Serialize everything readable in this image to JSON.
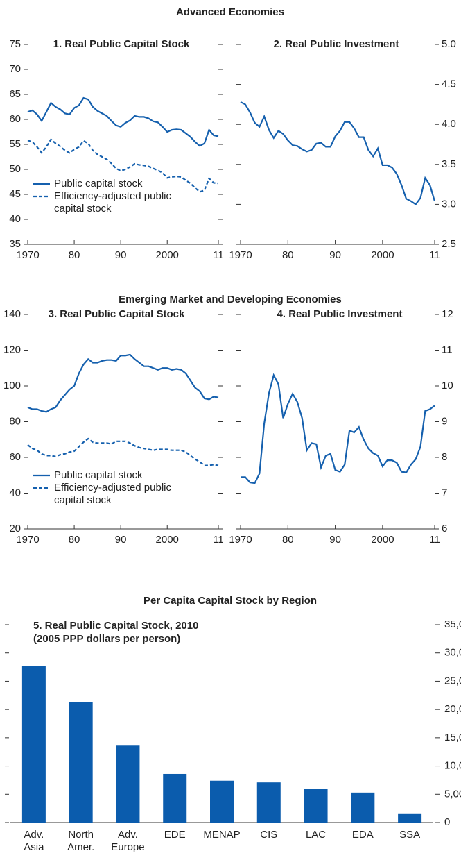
{
  "headings": [
    "Advanced Economies",
    "Emerging Market and Developing Economies",
    "Per Capita Capital Stock by Region"
  ],
  "chart_data": [
    {
      "type": "line",
      "title": "1. Real Public Capital Stock",
      "axis_side": "left",
      "x": [
        1970,
        1971,
        1972,
        1973,
        1974,
        1975,
        1976,
        1977,
        1978,
        1979,
        1980,
        1981,
        1982,
        1983,
        1984,
        1985,
        1986,
        1987,
        1988,
        1989,
        1990,
        1991,
        1992,
        1993,
        1994,
        1995,
        1996,
        1997,
        1998,
        1999,
        2000,
        2001,
        2002,
        2003,
        2004,
        2005,
        2006,
        2007,
        2008,
        2009,
        2010,
        2011
      ],
      "xlim": [
        1970,
        2011
      ],
      "xticks": [
        1970,
        {
          "value": 1980,
          "label": "80"
        },
        {
          "value": 1990,
          "label": "90"
        },
        2000,
        {
          "value": 2011,
          "label": "11"
        }
      ],
      "ylim": [
        35,
        75
      ],
      "yticks": [
        35,
        40,
        45,
        50,
        55,
        60,
        65,
        70,
        75
      ],
      "series": [
        {
          "name": "Public capital stock",
          "color": "#1560ae",
          "style": "solid",
          "values": [
            61.5,
            61.8,
            61,
            59.7,
            61.5,
            63.3,
            62.5,
            62,
            61.2,
            61,
            62.3,
            62.8,
            64.3,
            64,
            62.5,
            61.7,
            61.2,
            60.7,
            59.7,
            58.8,
            58.5,
            59.3,
            59.8,
            60.7,
            60.5,
            60.5,
            60.2,
            59.6,
            59.4,
            58.5,
            57.5,
            57.9,
            58,
            57.9,
            57.2,
            56.5,
            55.5,
            54.7,
            55.2,
            57.9,
            56.8,
            56.6
          ]
        },
        {
          "name": "Efficiency-adjusted public capital stock",
          "color": "#1560ae",
          "style": "dashed",
          "values": [
            55.8,
            55.5,
            54.5,
            53.3,
            54.5,
            56,
            55.2,
            54.6,
            53.8,
            53.3,
            54,
            54.5,
            55.7,
            55.2,
            53.8,
            53,
            52.5,
            52,
            51.2,
            50.2,
            49.7,
            50,
            50.5,
            51.1,
            50.9,
            50.8,
            50.6,
            50.2,
            49.8,
            49.3,
            48.3,
            48.5,
            48.6,
            48.5,
            47.8,
            47.2,
            46.3,
            45.5,
            45.8,
            48.2,
            47.3,
            47.2
          ]
        }
      ]
    },
    {
      "type": "line",
      "title": "2. Real Public Investment",
      "axis_side": "right",
      "x": [
        1970,
        1971,
        1972,
        1973,
        1974,
        1975,
        1976,
        1977,
        1978,
        1979,
        1980,
        1981,
        1982,
        1983,
        1984,
        1985,
        1986,
        1987,
        1988,
        1989,
        1990,
        1991,
        1992,
        1993,
        1994,
        1995,
        1996,
        1997,
        1998,
        1999,
        2000,
        2001,
        2002,
        2003,
        2004,
        2005,
        2006,
        2007,
        2008,
        2009,
        2010,
        2011
      ],
      "xlim": [
        1970,
        2011
      ],
      "xticks": [
        1970,
        {
          "value": 1980,
          "label": "80"
        },
        {
          "value": 1990,
          "label": "90"
        },
        2000,
        {
          "value": 2011,
          "label": "11"
        }
      ],
      "ylim": [
        2.5,
        5
      ],
      "yticks": [
        2.5,
        {
          "value": 3,
          "label": "3.0"
        },
        3.5,
        {
          "value": 4,
          "label": "4.0"
        },
        4.5,
        {
          "value": 5,
          "label": "5.0"
        }
      ],
      "series": [
        {
          "color": "#1560ae",
          "style": "solid",
          "values": [
            4.28,
            4.25,
            4.15,
            4.02,
            3.97,
            4.1,
            3.93,
            3.83,
            3.92,
            3.88,
            3.8,
            3.74,
            3.73,
            3.69,
            3.66,
            3.68,
            3.76,
            3.77,
            3.72,
            3.72,
            3.85,
            3.92,
            4.03,
            4.03,
            3.95,
            3.84,
            3.84,
            3.68,
            3.6,
            3.7,
            3.49,
            3.49,
            3.46,
            3.38,
            3.24,
            3.07,
            3.04,
            3,
            3.08,
            3.33,
            3.24,
            3.04
          ]
        }
      ]
    },
    {
      "type": "line",
      "title": "3. Real Public Capital Stock",
      "axis_side": "left",
      "x": [
        1970,
        1971,
        1972,
        1973,
        1974,
        1975,
        1976,
        1977,
        1978,
        1979,
        1980,
        1981,
        1982,
        1983,
        1984,
        1985,
        1986,
        1987,
        1988,
        1989,
        1990,
        1991,
        1992,
        1993,
        1994,
        1995,
        1996,
        1997,
        1998,
        1999,
        2000,
        2001,
        2002,
        2003,
        2004,
        2005,
        2006,
        2007,
        2008,
        2009,
        2010,
        2011
      ],
      "xlim": [
        1970,
        2011
      ],
      "xticks": [
        1970,
        {
          "value": 1980,
          "label": "80"
        },
        {
          "value": 1990,
          "label": "90"
        },
        2000,
        {
          "value": 2011,
          "label": "11"
        }
      ],
      "ylim": [
        20,
        140
      ],
      "yticks": [
        20,
        40,
        60,
        80,
        100,
        120,
        140
      ],
      "series": [
        {
          "name": "Public capital stock",
          "color": "#1560ae",
          "style": "solid",
          "values": [
            88,
            87,
            87,
            86,
            85.5,
            87,
            88,
            92,
            95,
            98,
            100,
            107,
            112,
            115,
            113,
            113,
            114,
            114.5,
            114.5,
            114,
            117,
            117,
            117.5,
            115,
            113,
            111,
            111,
            110,
            109,
            110,
            110,
            109,
            109.5,
            109,
            107,
            103,
            99,
            97,
            93,
            92.5,
            94,
            93.5
          ]
        },
        {
          "name": "Efficiency-adjusted public capital stock",
          "color": "#1560ae",
          "style": "dashed",
          "values": [
            67,
            65,
            64,
            62,
            61,
            61,
            60.5,
            61.5,
            62,
            63,
            63.5,
            66,
            68.5,
            70.5,
            68.5,
            68,
            68,
            68,
            67.5,
            69,
            69,
            69,
            68,
            66.5,
            65.5,
            65,
            64.5,
            64,
            64.5,
            64.5,
            64.5,
            64,
            64,
            64,
            63,
            61,
            59,
            57.5,
            55.5,
            55.5,
            56,
            55.5
          ]
        }
      ]
    },
    {
      "type": "line",
      "title": "4. Real Public Investment",
      "axis_side": "right",
      "x": [
        1970,
        1971,
        1972,
        1973,
        1974,
        1975,
        1976,
        1977,
        1978,
        1979,
        1980,
        1981,
        1982,
        1983,
        1984,
        1985,
        1986,
        1987,
        1988,
        1989,
        1990,
        1991,
        1992,
        1993,
        1994,
        1995,
        1996,
        1997,
        1998,
        1999,
        2000,
        2001,
        2002,
        2003,
        2004,
        2005,
        2006,
        2007,
        2008,
        2009,
        2010,
        2011
      ],
      "xlim": [
        1970,
        2011
      ],
      "xticks": [
        1970,
        {
          "value": 1980,
          "label": "80"
        },
        {
          "value": 1990,
          "label": "90"
        },
        2000,
        {
          "value": 2011,
          "label": "11"
        }
      ],
      "ylim": [
        6,
        12
      ],
      "yticks": [
        6,
        7,
        8,
        9,
        10,
        11,
        12
      ],
      "series": [
        {
          "color": "#1560ae",
          "style": "solid",
          "values": [
            7.45,
            7.45,
            7.3,
            7.28,
            7.55,
            8.95,
            9.8,
            10.3,
            10.05,
            9.1,
            9.5,
            9.78,
            9.55,
            9.1,
            8.2,
            8.4,
            8.37,
            7.72,
            8.05,
            8.1,
            7.65,
            7.6,
            7.8,
            8.75,
            8.7,
            8.85,
            8.5,
            8.25,
            8.12,
            8.05,
            7.75,
            7.92,
            7.92,
            7.85,
            7.6,
            7.58,
            7.8,
            7.95,
            8.3,
            9.3,
            9.35,
            9.45
          ]
        }
      ]
    },
    {
      "type": "bar",
      "title": "5. Real Public Capital Stock, 2010",
      "subtitle": "(2005 PPP dollars per person)",
      "axis_side": "right",
      "categories": [
        "Adv. Asia",
        "North Amer.",
        "Adv. Europe",
        "EDE",
        "MENAP",
        "CIS",
        "LAC",
        "EDA",
        "SSA"
      ],
      "values": [
        27700,
        21300,
        13600,
        8600,
        7400,
        7100,
        6000,
        5300,
        1500
      ],
      "color": "#0b5cad",
      "ylim": [
        0,
        35000
      ],
      "yticks": [
        0,
        {
          "value": 5000,
          "label": "5,000"
        },
        {
          "value": 10000,
          "label": "10,000"
        },
        {
          "value": 15000,
          "label": "15,000"
        },
        {
          "value": 20000,
          "label": "20,000"
        },
        {
          "value": 25000,
          "label": "25,000"
        },
        {
          "value": 30000,
          "label": "30,000"
        },
        {
          "value": 35000,
          "label": "35,000"
        }
      ]
    }
  ]
}
